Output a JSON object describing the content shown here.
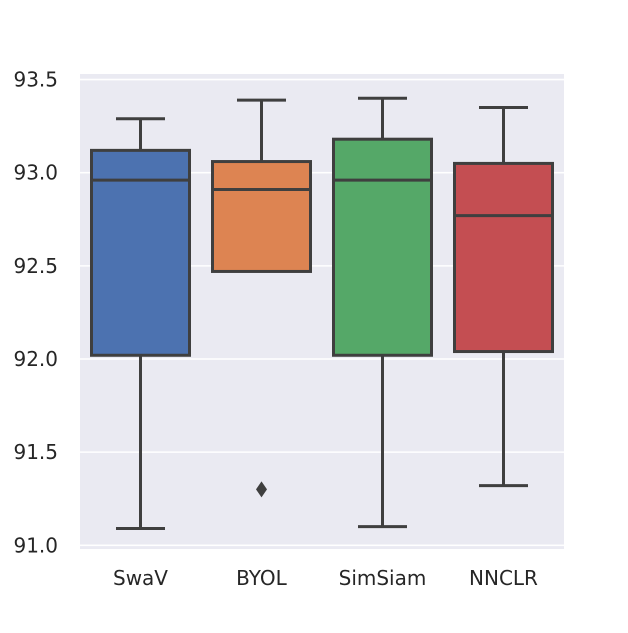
{
  "chart_data": {
    "type": "boxplot",
    "title": "",
    "xlabel": "",
    "ylabel": "",
    "ylim": [
      90.98,
      93.53
    ],
    "yticks": [
      91.0,
      91.5,
      92.0,
      92.5,
      93.0,
      93.5
    ],
    "ytick_labels": [
      "91.0",
      "91.5",
      "92.0",
      "92.5",
      "93.0",
      "93.5"
    ],
    "grid": true,
    "categories": [
      "SwaV",
      "BYOL",
      "SimSiam",
      "NNCLR"
    ],
    "boxes": [
      {
        "label": "SwaV",
        "whisker_low": 91.09,
        "q1": 92.02,
        "median": 92.96,
        "q3": 93.12,
        "whisker_high": 93.29,
        "outliers": [],
        "color": "#4c72b0"
      },
      {
        "label": "BYOL",
        "whisker_low": 92.47,
        "q1": 92.47,
        "median": 92.91,
        "q3": 93.06,
        "whisker_high": 93.39,
        "outliers": [
          91.3
        ],
        "color": "#dd8452"
      },
      {
        "label": "SimSiam",
        "whisker_low": 91.1,
        "q1": 92.02,
        "median": 92.96,
        "q3": 93.18,
        "whisker_high": 93.4,
        "outliers": [],
        "color": "#55a868"
      },
      {
        "label": "NNCLR",
        "whisker_low": 91.32,
        "q1": 92.04,
        "median": 92.77,
        "q3": 93.05,
        "whisker_high": 93.35,
        "outliers": [],
        "color": "#c44e52"
      }
    ],
    "colors": {
      "plot_background": "#eaeaf2",
      "grid": "#ffffff",
      "box_edge": "#3f3f3f"
    }
  }
}
